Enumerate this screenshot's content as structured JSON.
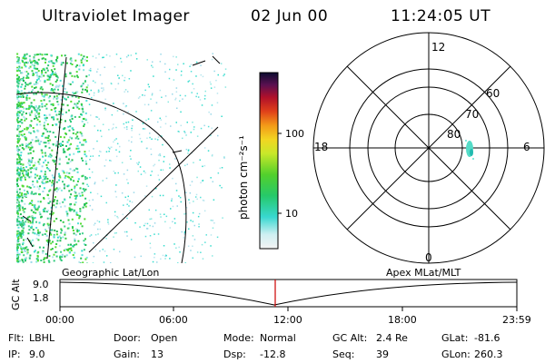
{
  "header": {
    "instrument": "Ultraviolet Imager",
    "date": "02 Jun 00",
    "time": "11:24:05 UT"
  },
  "colorbar": {
    "unit_label": "photon cm⁻²s⁻¹",
    "ticks": [
      "100",
      "10"
    ]
  },
  "polar": {
    "mlt_labels": {
      "top": "12",
      "left": "18",
      "right": "6",
      "bottom": "0"
    },
    "mlat_labels": [
      "60",
      "70",
      "80"
    ]
  },
  "timeline": {
    "left_label": "Geographic Lat/Lon",
    "right_label": "Apex MLat/MLT",
    "y_axis_label": "GC Alt",
    "y_ticks": [
      "9.0",
      "1.8"
    ],
    "x_ticks": [
      "00:00",
      "06:00",
      "12:00",
      "18:00",
      "23:59"
    ],
    "marker_time": "11:24"
  },
  "info": {
    "row1": [
      {
        "label": "Flt:",
        "value": "LBHL"
      },
      {
        "label": "Door:",
        "value": "Open"
      },
      {
        "label": "Mode:",
        "value": "Normal"
      },
      {
        "label": "GC Alt:",
        "value": "2.4 Re"
      },
      {
        "label": "GLat:",
        "value": "-81.6"
      }
    ],
    "row2": [
      {
        "label": "IP:",
        "value": "9.0"
      },
      {
        "label": "Gain:",
        "value": "13"
      },
      {
        "label": "Dsp:",
        "value": "-12.8"
      },
      {
        "label": "Seq:",
        "value": "39"
      },
      {
        "label": "GLon:",
        "value": "260.3"
      }
    ]
  },
  "colors": {
    "marker": "#cc0000",
    "aurora_green": "#33cc44",
    "aurora_cyan": "#33ddcc"
  }
}
